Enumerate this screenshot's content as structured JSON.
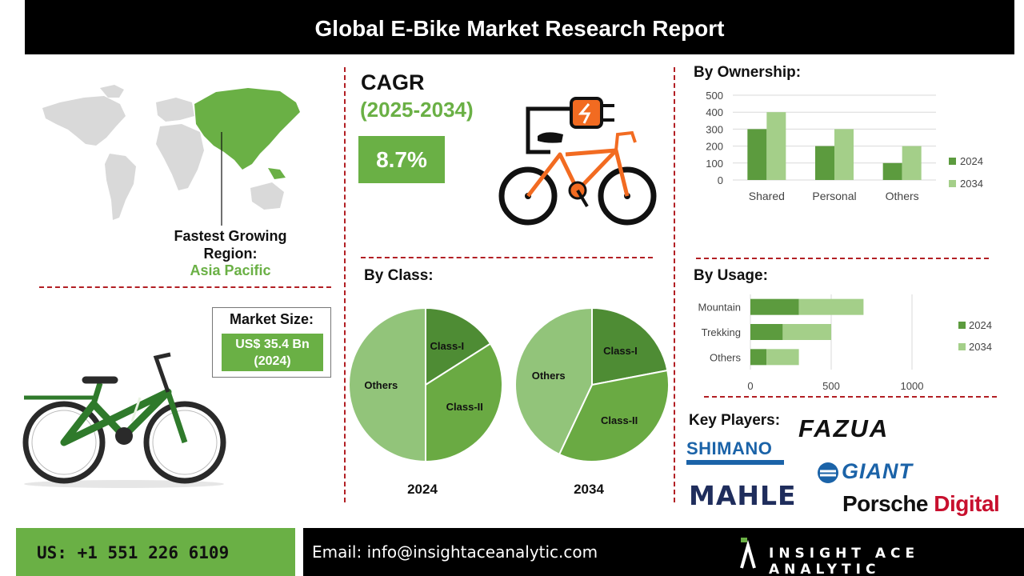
{
  "header": {
    "title": "Global E-Bike Market Research Report"
  },
  "region": {
    "label": "Fastest Growing Region:",
    "value": "Asia Pacific"
  },
  "market": {
    "label": "Market Size:",
    "value": "US$ 35.4 Bn (2024)"
  },
  "cagr": {
    "title": "CAGR",
    "years": "(2025-2034)",
    "value": "8.7%"
  },
  "sections": {
    "ownership": "By Ownership:",
    "class": "By Class:",
    "usage": "By Usage:",
    "players": "Key Players:"
  },
  "key_players": [
    "FAZUA",
    "SHIMANO",
    "GIANT",
    "MAHLE",
    "Porsche Digital"
  ],
  "colors": {
    "accent": "#6ab045",
    "dark_green": "#5c9b3e",
    "light_green": "#a4cf89",
    "pie_dark": "#4e8c34",
    "pie_mid": "#6aaa43",
    "pie_light": "#92c47a",
    "divider": "#b21f24"
  },
  "footer": {
    "phone": "US: +1 551 226 6109",
    "email": "Email: info@insightaceanalytic.com",
    "brand": "INSIGHT ACE ANALYTIC"
  },
  "chart_data": [
    {
      "type": "bar",
      "title": "By Ownership:",
      "categories": [
        "Shared",
        "Personal",
        "Others"
      ],
      "series": [
        {
          "name": "2024",
          "values": [
            300,
            200,
            100
          ]
        },
        {
          "name": "2034",
          "values": [
            400,
            300,
            200
          ]
        }
      ],
      "ylim": [
        0,
        500
      ],
      "yticks": [
        0,
        100,
        200,
        300,
        400,
        500
      ],
      "grid": true,
      "legend": "right"
    },
    {
      "type": "bar",
      "orientation": "horizontal",
      "stacked": true,
      "title": "By Usage:",
      "categories": [
        "Mountain",
        "Trekking",
        "Others"
      ],
      "series": [
        {
          "name": "2024",
          "values": [
            300,
            200,
            100
          ]
        },
        {
          "name": "2034",
          "values": [
            400,
            300,
            200
          ]
        }
      ],
      "xlim": [
        0,
        1000
      ],
      "xticks": [
        0,
        500,
        1000
      ],
      "grid": true,
      "legend": "right"
    },
    {
      "type": "pie",
      "title": "By Class:",
      "label": "2024",
      "slices": [
        {
          "name": "Class-I",
          "value": 16
        },
        {
          "name": "Class-II",
          "value": 34
        },
        {
          "name": "Others",
          "value": 50
        }
      ]
    },
    {
      "type": "pie",
      "label": "2034",
      "slices": [
        {
          "name": "Class-I",
          "value": 22
        },
        {
          "name": "Class-II",
          "value": 35
        },
        {
          "name": "Others",
          "value": 43
        }
      ]
    }
  ]
}
